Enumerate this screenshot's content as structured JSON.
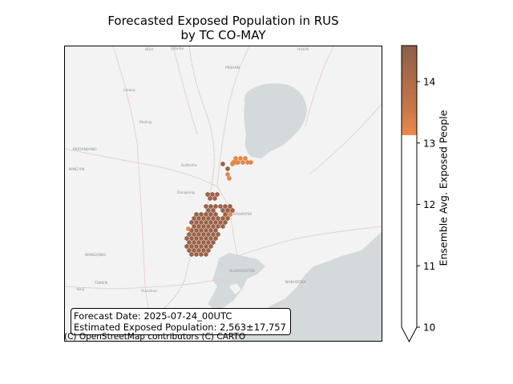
{
  "title": {
    "line1": "Forecasted Exposed Population in RUS",
    "line2": "by TC CO-MAY"
  },
  "info": {
    "forecast_date": "Forecast Date: 2025-07-24_00UTC",
    "exposed_population": "Estimated Exposed Population: 2,563±17,757"
  },
  "attribution": "(C) OpenStreetMap contributors (C) CARTO",
  "map_labels": {
    "boli": "BOLI",
    "qitaihe": "Qitaihe",
    "mishan": "MISHAN",
    "hulin": "HULIN",
    "linkou": "Linkou",
    "muling": "Muling",
    "mudanjiang": "MUDANJIANG",
    "ning_an": "NING'AN",
    "suifenhe": "Suifenhe",
    "dongning": "Dongning",
    "ussuriysk": "USSURIYSK",
    "wangqing": "WANGQING",
    "vladivostok": "VLADIVOSTOK",
    "nakhodka": "NAKHODKA",
    "tumen": "TUMEN",
    "hunchun": "Hunchun",
    "yanji": "Yanji"
  },
  "colors": {
    "land": "#f2f3f2",
    "water": "#d4dadc",
    "roads": "#e8c8c8",
    "border": "#d6b4b4",
    "hex_high": "#9b6248",
    "hex_low": "#e2874a",
    "colorbar_top": "#8c5f47",
    "colorbar_bottom": "#ee8a4a"
  },
  "colorbar": {
    "label": "Ensemble Avg. Exposed People",
    "ticks": [
      "10",
      "11",
      "12",
      "13",
      "14"
    ],
    "range": [
      10,
      14.57
    ],
    "colored_from": 13.1,
    "extend": "min"
  },
  "hexbins": {
    "cells": [
      {
        "value": 14.3
      },
      {
        "value": 13.2
      }
    ]
  }
}
